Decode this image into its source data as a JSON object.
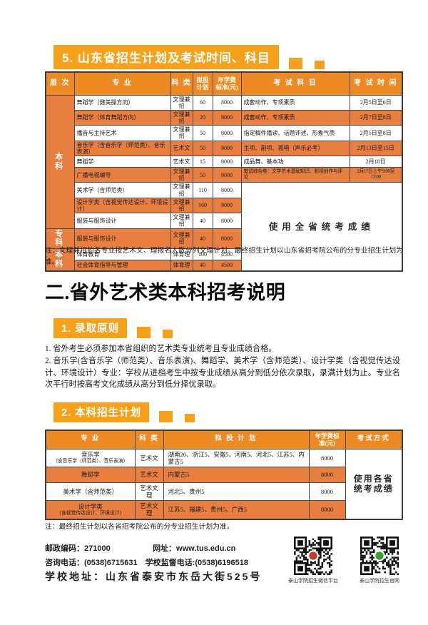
{
  "colors": {
    "accent": "#F7A11B",
    "table_header": "#EE8A24",
    "row_orange": "#E87E40",
    "row_orange_text": "#9E3A17",
    "qr1_logo": "#C43B2B",
    "qr2_logo": "#3F9C35"
  },
  "sections": {
    "s5_title": "5. 山东省招生计划及考试时间、科目",
    "heading2": "二.省外艺术类本科招考说明",
    "s1_title": "1. 录取原则",
    "s2_title": "2. 本科招生计划"
  },
  "table1": {
    "headers": [
      "层 次",
      "专    业",
      "科 类",
      "拟投\n计划",
      "年学费\n标准(元)",
      "考 试 科 目",
      "考 试 时 间"
    ],
    "merged_note": "使用全省统考成绩",
    "rows": [
      {
        "level": "本 科",
        "level_span": 9,
        "major": "舞蹈学（健美操方向）",
        "category": "文理兼招",
        "plan": "60",
        "fee": "8000",
        "subjects": "成套动作、专项素质",
        "time": "2月5日至6日",
        "orange": false
      },
      {
        "major": "舞蹈学（体育舞蹈方向）",
        "category": "文理兼招",
        "plan": "20",
        "fee": "8000",
        "subjects": "成套动作、专项素质",
        "time": "2月7日至8日",
        "orange": true
      },
      {
        "major": "播音与主持艺术",
        "category": "文理兼招",
        "plan": "50",
        "fee": "8000",
        "subjects": "指定稿件播读、话题评述、形象气质",
        "time": "2月5日至8日",
        "orange": false
      },
      {
        "major": "音乐学（含音乐学（师范类）、音乐表演）",
        "category": "艺术文",
        "plan": "50",
        "fee": "8000",
        "subjects": "主项、副项、视唱（声乐必考）",
        "time": "2月13日至15日",
        "orange": true
      },
      {
        "major": "舞蹈学",
        "category": "艺术文",
        "plan": "15",
        "fee": "8000",
        "subjects": "成品舞、基本功",
        "time": "2月18日",
        "orange": false
      },
      {
        "major": "广播电视编导",
        "category": "文理兼招",
        "plan": "50",
        "fee": "8000",
        "subjects": "笔试综合卷：文学艺术基础知识、影视创作与评论",
        "time": "2月17日上午9:00至12:00",
        "orange": true,
        "compact": true
      },
      {
        "major": "美术学（含师范类）",
        "category": "文理兼招",
        "plan": "110",
        "fee": "8000",
        "merged_start": true,
        "orange": false
      },
      {
        "major": "设计学类（含视觉传达设计、环境设计）",
        "category": "文理兼招",
        "plan": "160",
        "fee": "8000",
        "orange": true
      },
      {
        "major": "服装与服饰设计",
        "category": "文理兼招",
        "plan": "40",
        "fee": "8000",
        "orange": false
      },
      {
        "level": "专 科",
        "level_span": 1,
        "major": "服装与服饰设计",
        "category": "文理兼招",
        "plan": "40",
        "fee": "8000",
        "orange": true
      },
      {
        "level": "本 科",
        "level_span": 2,
        "major": "体育教育",
        "category": "体育理",
        "plan": "100",
        "fee": "4500",
        "orange": false
      },
      {
        "major": "社会体育指导与管理",
        "category": "体育理",
        "plan": "40",
        "fee": "4500",
        "orange": true
      }
    ],
    "note": "注：文理兼招的各专业按艺术文、理报名人数分列文理计划。最终招生计划以山东省招考院公布的分专业招生计划为准。"
  },
  "principles": {
    "lines": [
      "1. 省外考生必须参加本省组织的艺术类专业统考且专业成绩合格。",
      "2. 音乐学(含音乐学（师范类）、音乐表演)、舞蹈学、美术学（含师范类）、设计学类（含视觉传达设计、环境设计）专业：学校从进档考生中按专业成绩从高分到低分依次录取，录满计划为止。专业名次平行时按高考文化成绩从高分到低分择优录取。"
    ]
  },
  "table2": {
    "headers": [
      "专    业",
      "科 类",
      "拟 投 计 划",
      "年学费标\n准(元)",
      "考试方式"
    ],
    "merged_note": "使用各省\n统考成绩",
    "rows": [
      {
        "major": "音乐学",
        "major_sub": "（含音乐学（师范类）、音乐表演）",
        "category": "艺术文",
        "plan": "湖南20、浙江5、安徽5、河南5、河北5、江苏5、内蒙古5",
        "fee": "8000",
        "orange": false
      },
      {
        "major": "舞蹈学",
        "category": "艺术文",
        "plan": "内蒙古5",
        "fee": "8000",
        "orange": true
      },
      {
        "major": "美术学（含师范类）",
        "category": "艺术文理",
        "plan": "河北5、贵州5",
        "fee": "8000",
        "orange": false
      },
      {
        "major": "设计学类",
        "major_sub": "（含视觉传达设计、环境设计）",
        "category": "艺术文理",
        "plan": "江苏5、福建5、贵州5、广西5",
        "fee": "8000",
        "orange": true
      }
    ],
    "note": "注：最终招生计划以各省招考院公布的分专业招生计划为准。"
  },
  "footer": {
    "postal": "邮政编码：271000",
    "website": "网址：www.tus.edu.cn",
    "phone": "咨询电话：(0538)6715631",
    "supervise_phone": "学校监督电话:(0538)6196518",
    "address": "学校地址：山东省泰安市东岳大街525号",
    "qr1_label": "泰山学院招生微信平台",
    "qr2_label": "泰山学院招生官网"
  }
}
